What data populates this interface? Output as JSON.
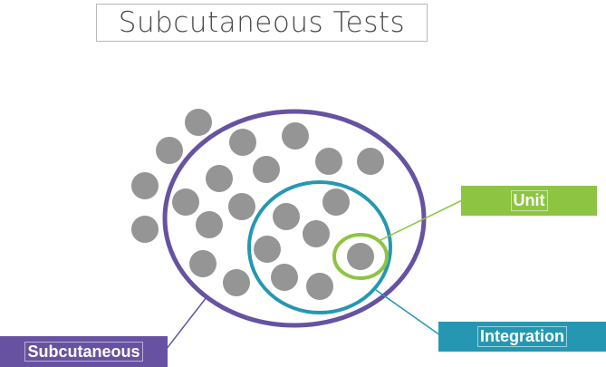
{
  "title": "Subcutaneous Tests",
  "labels": {
    "unit": "Unit",
    "integration": "Integration",
    "subcutaneous": "Subcutaneous"
  },
  "colors": {
    "unit": "#8dc442",
    "integration": "#2697b2",
    "subcutaneous": "#6752a2",
    "dots": "#959595",
    "title_text": "#4a4a4a"
  }
}
